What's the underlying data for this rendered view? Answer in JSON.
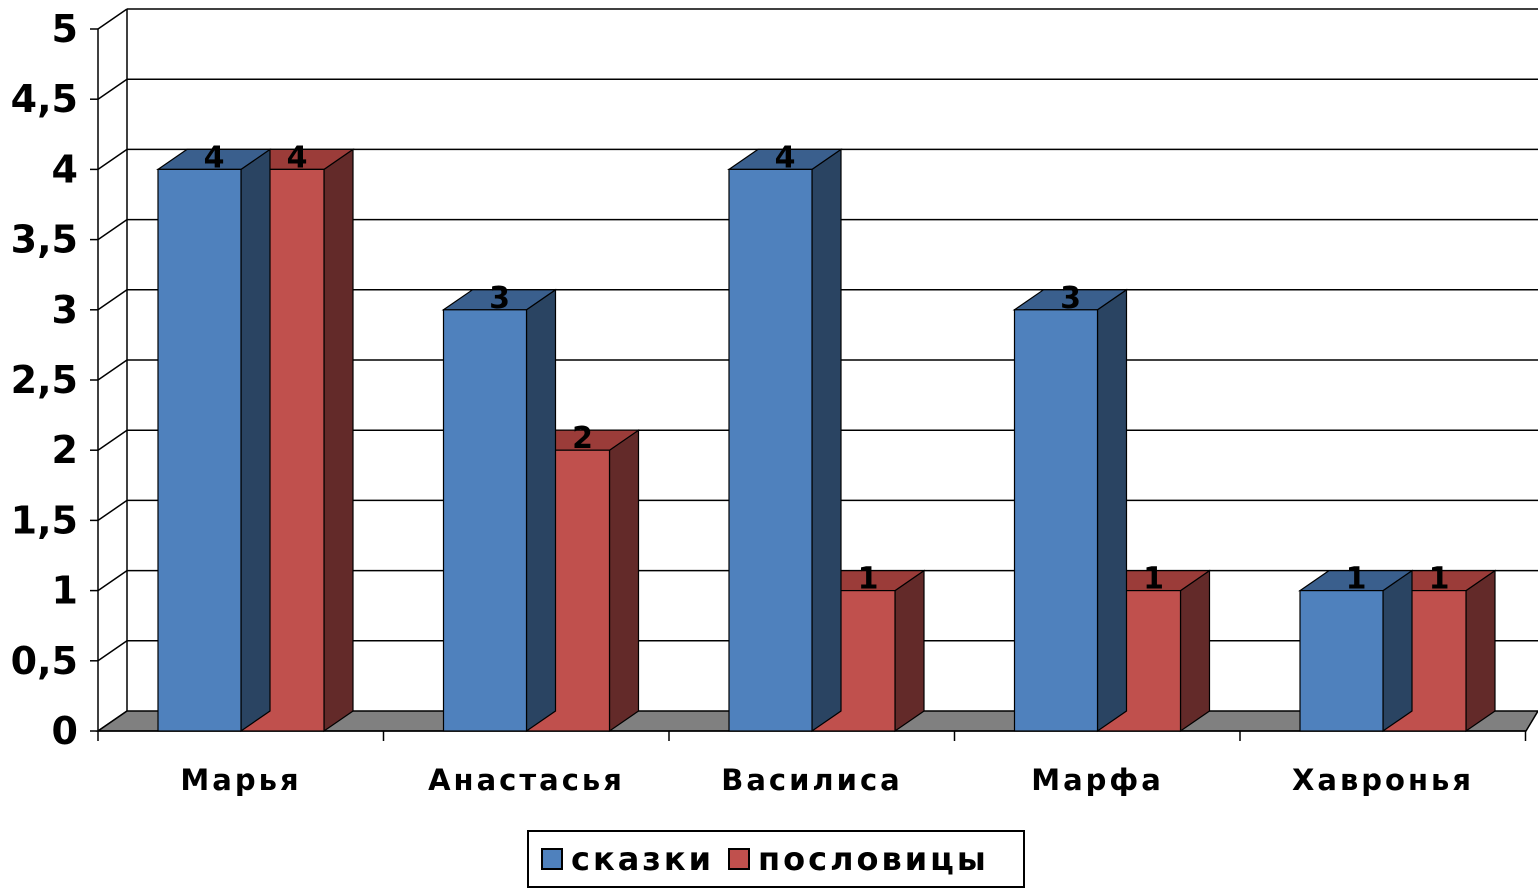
{
  "chart_data": {
    "type": "bar",
    "style": "3d-clustered-column",
    "categories": [
      "Марья",
      "Анастасья",
      "Василиса",
      "Марфа",
      "Хавронья"
    ],
    "series": [
      {
        "name": "сказки",
        "color": "#4f81bd",
        "side_color": "#2a4462",
        "top_color": "#3a5f8d",
        "values": [
          4,
          3,
          4,
          3,
          1
        ]
      },
      {
        "name": "пословицы",
        "color": "#c0504d",
        "side_color": "#632a29",
        "top_color": "#9b3c39",
        "values": [
          4,
          2,
          1,
          1,
          1
        ]
      }
    ],
    "y_ticks": [
      "0",
      "0,5",
      "1",
      "1,5",
      "2",
      "2,5",
      "3",
      "3,5",
      "4",
      "4,5",
      "5"
    ],
    "ylim": [
      0,
      5
    ],
    "grid": true,
    "data_labels": true,
    "legend_position": "bottom",
    "floor_color": "#808080"
  }
}
